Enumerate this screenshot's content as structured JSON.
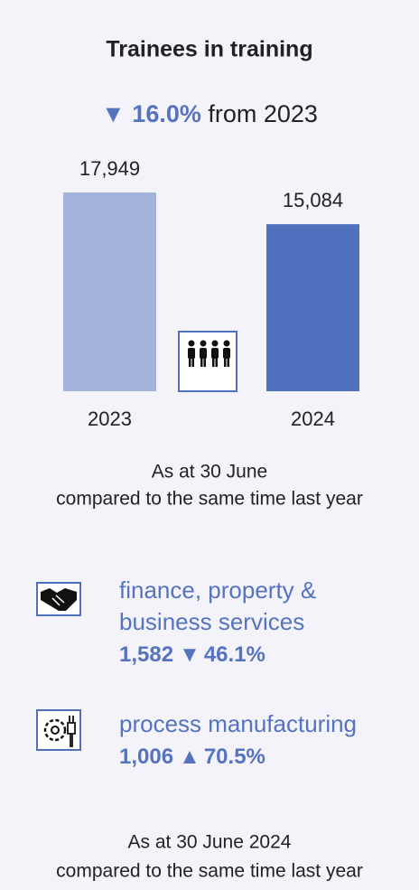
{
  "chart_data": {
    "type": "bar",
    "title": "Trainees in training",
    "change": {
      "arrow": "▼",
      "value": "16.0%",
      "text": "from 2023"
    },
    "categories": [
      "2023",
      "2024"
    ],
    "values": [
      17949,
      15084
    ],
    "value_labels": [
      "17,949",
      "15,084"
    ],
    "colors": [
      "#a3b3dc",
      "#5072be"
    ],
    "note": [
      "As at 30 June",
      "compared to the same time last year"
    ]
  },
  "industries": [
    {
      "name": [
        "finance, property &",
        "business services"
      ],
      "count": "1,582",
      "arrow": "▼",
      "change": "46.1%"
    },
    {
      "name": [
        "process manufacturing"
      ],
      "count": "1,006",
      "arrow": "▲",
      "change": "70.5%"
    }
  ],
  "footer": [
    "As at 30 June 2024",
    "compared to the same time last year"
  ]
}
